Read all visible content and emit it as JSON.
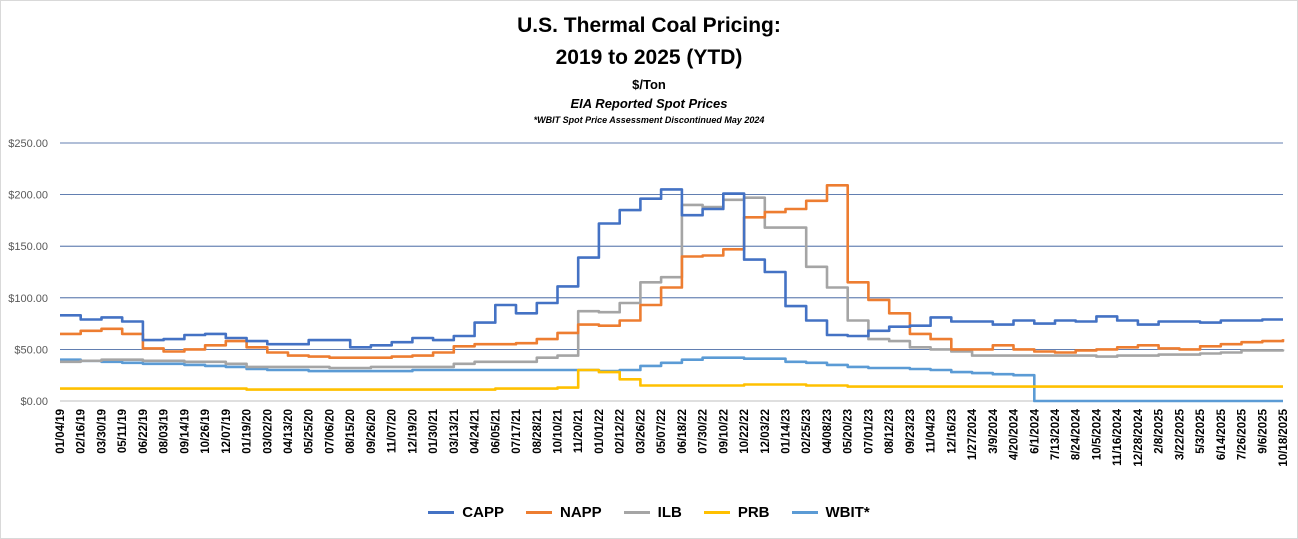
{
  "chart_data": {
    "type": "line",
    "title": "U.S. Thermal Coal Pricing:",
    "title_line2": "2019 to 2025 (YTD)",
    "unit": "$/Ton",
    "subtitle": "EIA Reported Spot Prices",
    "note": "*WBIT Spot Price Assessment Discontinued May 2024",
    "ylim": [
      0,
      250
    ],
    "y_ticks": [
      "$0.00",
      "$50.00",
      "$100.00",
      "$150.00",
      "$200.00",
      "$250.00"
    ],
    "y_tick_values": [
      0,
      50,
      100,
      150,
      200,
      250
    ],
    "grid": "horizontal",
    "legend_position": "bottom",
    "x_tick_labels": [
      "01/04/19",
      "02/16/19",
      "03/30/19",
      "05/11/19",
      "06/22/19",
      "08/03/19",
      "09/14/19",
      "10/26/19",
      "12/07/19",
      "01/19/20",
      "03/02/20",
      "04/13/20",
      "05/25/20",
      "07/06/20",
      "08/15/20",
      "09/26/20",
      "11/07/20",
      "12/19/20",
      "01/30/21",
      "03/13/21",
      "04/24/21",
      "06/05/21",
      "07/17/21",
      "08/28/21",
      "10/10/21",
      "11/20/21",
      "01/01/22",
      "02/12/22",
      "03/26/22",
      "05/07/22",
      "06/18/22",
      "07/30/22",
      "09/10/22",
      "10/22/22",
      "12/03/22",
      "01/14/23",
      "02/25/23",
      "04/08/23",
      "05/20/23",
      "07/01/23",
      "08/12/23",
      "09/23/23",
      "11/04/23",
      "12/16/23",
      "1/27/2024",
      "3/9/2024",
      "4/20/2024",
      "6/1/2024",
      "7/13/2024",
      "8/24/2024",
      "10/5/2024",
      "11/16/2024",
      "12/28/2024",
      "2/8/2025",
      "3/22/2025",
      "5/3/2025",
      "6/14/2025",
      "7/26/2025",
      "9/6/2025",
      "10/18/2025"
    ],
    "series": [
      {
        "name": "CAPP",
        "color": "#4472c4",
        "values": [
          83,
          79,
          81,
          77,
          59,
          60,
          64,
          65,
          61,
          58,
          55,
          55,
          59,
          59,
          52,
          54,
          57,
          61,
          59,
          63,
          76,
          93,
          85,
          95,
          111,
          139,
          172,
          185,
          196,
          205,
          180,
          186,
          201,
          137,
          125,
          92,
          78,
          64,
          63,
          68,
          72,
          73,
          81,
          77,
          77,
          74,
          78,
          75,
          78,
          77,
          82,
          78,
          74,
          77,
          77,
          76,
          78,
          78,
          79,
          79
        ]
      },
      {
        "name": "NAPP",
        "color": "#ed7d31",
        "values": [
          65,
          68,
          70,
          65,
          51,
          48,
          50,
          54,
          58,
          52,
          47,
          44,
          43,
          42,
          42,
          42,
          43,
          44,
          47,
          53,
          55,
          55,
          56,
          60,
          66,
          74,
          73,
          78,
          93,
          110,
          140,
          141,
          147,
          178,
          183,
          186,
          194,
          209,
          115,
          98,
          85,
          65,
          60,
          50,
          50,
          54,
          50,
          48,
          47,
          49,
          50,
          52,
          54,
          51,
          50,
          53,
          55,
          57,
          58,
          60
        ]
      },
      {
        "name": "ILB",
        "color": "#a5a5a5",
        "values": [
          38,
          39,
          40,
          40,
          39,
          39,
          38,
          38,
          36,
          33,
          33,
          33,
          33,
          32,
          32,
          33,
          33,
          33,
          33,
          36,
          38,
          38,
          38,
          42,
          44,
          87,
          86,
          95,
          115,
          120,
          190,
          188,
          195,
          197,
          168,
          168,
          130,
          110,
          78,
          60,
          58,
          52,
          50,
          48,
          44,
          44,
          44,
          44,
          44,
          44,
          43,
          44,
          44,
          45,
          45,
          46,
          47,
          49,
          49,
          50
        ]
      },
      {
        "name": "PRB",
        "color": "#ffc000",
        "values": [
          12,
          12,
          12,
          12,
          12,
          12,
          12,
          12,
          12,
          11,
          11,
          11,
          11,
          11,
          11,
          11,
          11,
          11,
          11,
          11,
          11,
          12,
          12,
          12,
          13,
          30,
          28,
          21,
          15,
          15,
          15,
          15,
          15,
          16,
          16,
          16,
          15,
          15,
          14,
          14,
          14,
          14,
          14,
          14,
          14,
          14,
          14,
          14,
          14,
          14,
          14,
          14,
          14,
          14,
          14,
          14,
          14,
          14,
          14,
          14
        ]
      },
      {
        "name": "WBIT*",
        "color": "#5b9bd5",
        "values": [
          40,
          39,
          38,
          37,
          36,
          36,
          35,
          34,
          33,
          31,
          30,
          30,
          29,
          29,
          29,
          29,
          29,
          30,
          30,
          30,
          30,
          30,
          30,
          30,
          30,
          30,
          29,
          30,
          34,
          37,
          40,
          42,
          42,
          41,
          41,
          38,
          37,
          35,
          33,
          32,
          32,
          31,
          30,
          28,
          27,
          26,
          25,
          0,
          0,
          0,
          0,
          0,
          0,
          0,
          0,
          0,
          0,
          0,
          0,
          0
        ]
      }
    ]
  }
}
